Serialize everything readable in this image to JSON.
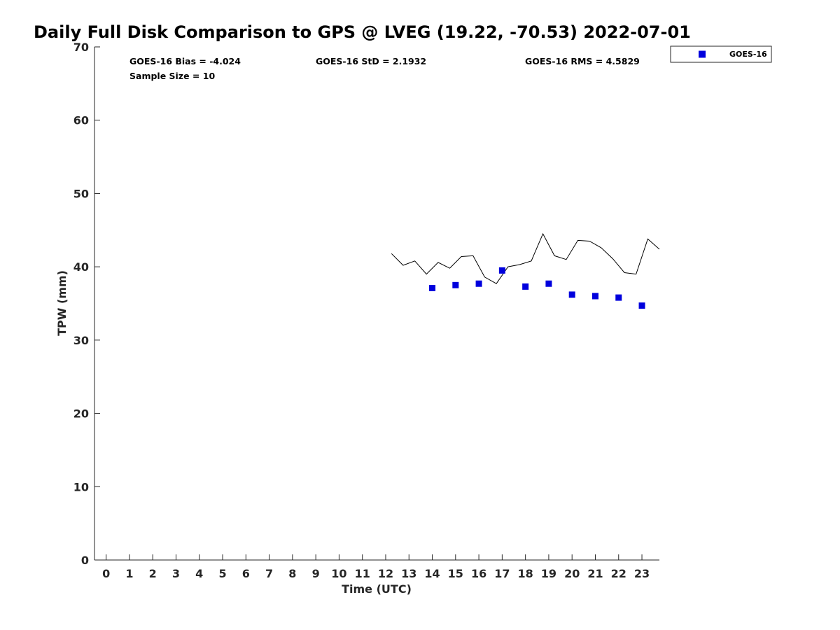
{
  "chart_data": {
    "type": "scatter",
    "title": "Daily Full Disk Comparison to GPS @ LVEG (19.22, -70.53) 2022-07-01",
    "xlabel": "Time (UTC)",
    "ylabel": "TPW (mm)",
    "xlim": [
      -0.5,
      23.75
    ],
    "ylim": [
      0,
      70
    ],
    "x_ticks": [
      0,
      1,
      2,
      3,
      4,
      5,
      6,
      7,
      8,
      9,
      10,
      11,
      12,
      13,
      14,
      15,
      16,
      17,
      18,
      19,
      20,
      21,
      22,
      23
    ],
    "y_ticks": [
      0,
      10,
      20,
      30,
      40,
      50,
      60,
      70
    ],
    "grid": false,
    "legend_position": "top-right, outside plot",
    "stats": {
      "bias": "GOES-16 Bias = -4.024",
      "std": "GOES-16 StD = 2.1932",
      "rms": "GOES-16 RMS = 4.5829",
      "sample_size": "Sample Size = 10"
    },
    "series": [
      {
        "name": "GOES-16",
        "kind": "scatter",
        "marker": "square",
        "color": "#0000dd",
        "x": [
          14,
          15,
          16,
          17,
          18,
          19,
          20,
          21,
          22,
          23
        ],
        "y": [
          37.1,
          37.5,
          37.7,
          39.5,
          37.3,
          37.7,
          36.2,
          36.0,
          35.8,
          34.7
        ]
      },
      {
        "kind": "line",
        "color": "#000000",
        "x": [
          12.25,
          12.75,
          13.25,
          13.75,
          14.25,
          14.75,
          15.25,
          15.75,
          16.25,
          16.75,
          17.25,
          17.75,
          18.25,
          18.75,
          19.25,
          19.75,
          20.25,
          20.75,
          21.25,
          21.75,
          22.25,
          22.75,
          23.25,
          23.75
        ],
        "y": [
          41.8,
          40.2,
          40.8,
          39.0,
          40.6,
          39.8,
          41.4,
          41.5,
          38.6,
          37.7,
          40.0,
          40.3,
          40.8,
          44.5,
          41.5,
          41.0,
          43.6,
          43.5,
          42.6,
          41.1,
          39.2,
          39.0,
          43.8,
          42.4
        ]
      }
    ]
  }
}
